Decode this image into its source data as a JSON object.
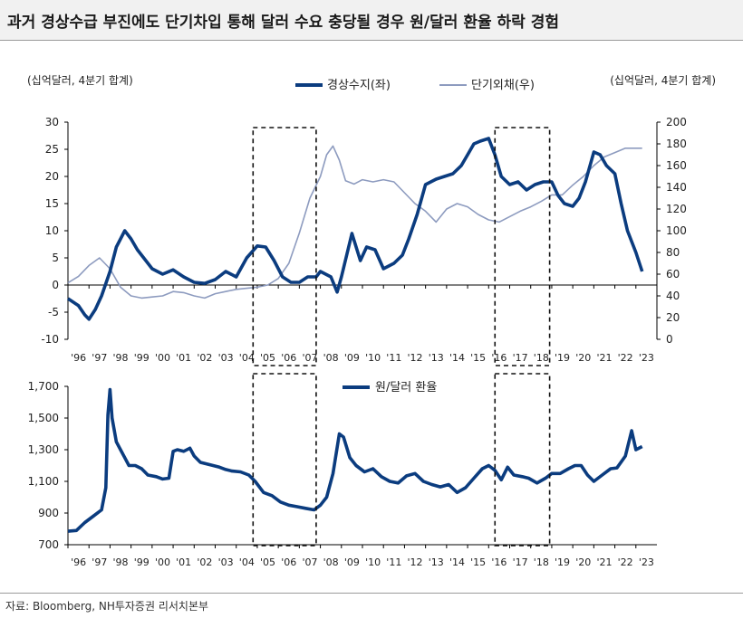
{
  "title": "과거 경상수급 부진에도 단기차입 통해 달러 수요 충당될 경우 원/달러 환율 하락 경험",
  "source": "자료: Bloomberg, NH투자증권 리서치본부",
  "colors": {
    "dark_series": "#0b3c7f",
    "light_series": "#8d9bbf",
    "axis": "#000000"
  },
  "chart_data": [
    {
      "type": "line",
      "title": "",
      "left_axis_unit": "(십억달러, 4분기 합계)",
      "right_axis_unit": "(십억달러, 4분기 합계)",
      "ylim_left": [
        -10,
        30
      ],
      "yticks_left": [
        -10,
        -5,
        0,
        5,
        10,
        15,
        20,
        25,
        30
      ],
      "ylim_right": [
        0,
        200
      ],
      "yticks_right": [
        0,
        20,
        40,
        60,
        80,
        100,
        120,
        140,
        160,
        180,
        200
      ],
      "xlim": [
        1996,
        2024
      ],
      "x_tick_labels": [
        "'96",
        "'97",
        "'98",
        "'99",
        "'00",
        "'01",
        "'02",
        "'03",
        "'04",
        "'05",
        "'06",
        "'07",
        "'08",
        "'09",
        "'10",
        "'11",
        "'12",
        "'13",
        "'14",
        "'15",
        "'16",
        "'17",
        "'18",
        "'19",
        "'20",
        "'21",
        "'22",
        "'23"
      ],
      "legend_position": "top",
      "series": [
        {
          "name": "경상수지(좌)",
          "axis": "left",
          "x": [
            1996.0,
            1996.5,
            1996.8,
            1997.0,
            1997.3,
            1997.6,
            1998.0,
            1998.3,
            1998.7,
            1999.0,
            1999.3,
            1999.6,
            2000.0,
            2000.5,
            2001.0,
            2001.5,
            2002.0,
            2002.5,
            2003.0,
            2003.5,
            2004.0,
            2004.5,
            2005.0,
            2005.4,
            2005.8,
            2006.2,
            2006.6,
            2007.0,
            2007.4,
            2007.8,
            2008.0,
            2008.5,
            2008.8,
            2009.0,
            2009.5,
            2009.9,
            2010.2,
            2010.6,
            2011.0,
            2011.5,
            2011.9,
            2012.2,
            2012.6,
            2013.0,
            2013.5,
            2013.9,
            2014.3,
            2014.7,
            2015.0,
            2015.3,
            2015.6,
            2016.0,
            2016.3,
            2016.6,
            2017.0,
            2017.4,
            2017.8,
            2018.2,
            2018.6,
            2019.0,
            2019.3,
            2019.6,
            2020.0,
            2020.3,
            2020.6,
            2021.0,
            2021.3,
            2021.6,
            2022.0,
            2022.3,
            2022.6,
            2023.0,
            2023.3
          ],
          "values": [
            -2.5,
            -3.8,
            -5.5,
            -6.3,
            -4.5,
            -2.0,
            2.5,
            7.0,
            10.0,
            8.5,
            6.5,
            5.0,
            3.0,
            2.0,
            2.8,
            1.5,
            0.5,
            0.3,
            1.0,
            2.5,
            1.5,
            5.0,
            7.2,
            7.0,
            4.5,
            1.5,
            0.5,
            0.5,
            1.5,
            1.5,
            2.5,
            1.5,
            -1.3,
            1.5,
            9.5,
            4.5,
            7.0,
            6.5,
            3.0,
            4.0,
            5.5,
            8.5,
            13.0,
            18.5,
            19.5,
            20.0,
            20.5,
            22.0,
            24.0,
            26.0,
            26.5,
            27.0,
            24.0,
            20.0,
            18.5,
            19.0,
            17.5,
            18.5,
            19.0,
            19.0,
            16.5,
            15.0,
            14.5,
            16.0,
            19.0,
            24.5,
            24.0,
            22.0,
            20.5,
            15.0,
            10.0,
            6.0,
            2.5
          ]
        },
        {
          "name": "단기외채(우)",
          "axis": "right",
          "x": [
            1996.0,
            1996.5,
            1997.0,
            1997.5,
            1998.0,
            1998.5,
            1999.0,
            1999.5,
            2000.0,
            2000.5,
            2001.0,
            2001.5,
            2002.0,
            2002.5,
            2003.0,
            2003.5,
            2004.0,
            2004.5,
            2005.0,
            2005.5,
            2006.0,
            2006.5,
            2007.0,
            2007.5,
            2008.0,
            2008.3,
            2008.6,
            2008.9,
            2009.2,
            2009.6,
            2010.0,
            2010.5,
            2011.0,
            2011.5,
            2012.0,
            2012.5,
            2013.0,
            2013.5,
            2014.0,
            2014.5,
            2015.0,
            2015.5,
            2016.0,
            2016.5,
            2017.0,
            2017.5,
            2018.0,
            2018.5,
            2019.0,
            2019.5,
            2020.0,
            2020.5,
            2021.0,
            2021.5,
            2022.0,
            2022.5,
            2023.0,
            2023.3
          ],
          "values": [
            52,
            58,
            68,
            75,
            65,
            48,
            40,
            38,
            39,
            40,
            44,
            43,
            40,
            38,
            42,
            44,
            46,
            47,
            48,
            50,
            56,
            70,
            98,
            130,
            150,
            170,
            178,
            165,
            146,
            143,
            147,
            145,
            147,
            145,
            135,
            125,
            118,
            108,
            120,
            125,
            122,
            115,
            110,
            108,
            113,
            118,
            122,
            127,
            133,
            133,
            142,
            150,
            160,
            168,
            172,
            176,
            176,
            176
          ]
        }
      ],
      "shaded_periods": [
        [
          2004.8,
          2007.8
        ],
        [
          2016.3,
          2018.9
        ]
      ]
    },
    {
      "type": "line",
      "title": "",
      "ylim": [
        700,
        1700
      ],
      "yticks": [
        700,
        900,
        1100,
        1300,
        1500,
        1700
      ],
      "ytick_labels": [
        "700",
        "900",
        "1,100",
        "1,300",
        "1,500",
        "1,700"
      ],
      "xlim": [
        1996,
        2024
      ],
      "x_tick_labels": [
        "'96",
        "'97",
        "'98",
        "'99",
        "'00",
        "'01",
        "'02",
        "'03",
        "'04",
        "'05",
        "'06",
        "'07",
        "'08",
        "'09",
        "'10",
        "'11",
        "'12",
        "'13",
        "'14",
        "'15",
        "'16",
        "'17",
        "'18",
        "'19",
        "'20",
        "'21",
        "'22",
        "'23"
      ],
      "legend_position": "top-center",
      "series": [
        {
          "name": "원/달러 환율",
          "x": [
            1996.0,
            1996.4,
            1996.8,
            1997.2,
            1997.6,
            1997.8,
            1997.9,
            1998.0,
            1998.1,
            1998.3,
            1998.5,
            1998.7,
            1998.9,
            1999.2,
            1999.5,
            1999.8,
            2000.2,
            2000.5,
            2000.8,
            2001.0,
            2001.2,
            2001.5,
            2001.8,
            2002.0,
            2002.3,
            2002.6,
            2002.9,
            2003.2,
            2003.5,
            2003.8,
            2004.2,
            2004.6,
            2004.9,
            2005.3,
            2005.7,
            2006.1,
            2006.5,
            2006.9,
            2007.3,
            2007.7,
            2008.0,
            2008.3,
            2008.6,
            2008.9,
            2009.1,
            2009.4,
            2009.7,
            2010.1,
            2010.5,
            2010.9,
            2011.3,
            2011.7,
            2012.1,
            2012.5,
            2012.9,
            2013.3,
            2013.7,
            2014.1,
            2014.5,
            2014.9,
            2015.3,
            2015.7,
            2016.0,
            2016.3,
            2016.6,
            2016.9,
            2017.2,
            2017.6,
            2017.9,
            2018.3,
            2018.7,
            2019.0,
            2019.4,
            2019.8,
            2020.1,
            2020.4,
            2020.7,
            2021.0,
            2021.4,
            2021.8,
            2022.1,
            2022.5,
            2022.8,
            2023.0,
            2023.3
          ],
          "values": [
            785,
            790,
            840,
            880,
            920,
            1060,
            1520,
            1680,
            1500,
            1350,
            1300,
            1250,
            1200,
            1200,
            1180,
            1140,
            1130,
            1115,
            1120,
            1290,
            1300,
            1290,
            1310,
            1260,
            1220,
            1210,
            1200,
            1190,
            1175,
            1165,
            1160,
            1140,
            1100,
            1030,
            1010,
            970,
            950,
            940,
            930,
            920,
            950,
            1000,
            1150,
            1400,
            1380,
            1250,
            1200,
            1160,
            1180,
            1130,
            1100,
            1090,
            1135,
            1150,
            1100,
            1080,
            1065,
            1080,
            1030,
            1060,
            1120,
            1180,
            1200,
            1170,
            1110,
            1190,
            1140,
            1130,
            1120,
            1090,
            1120,
            1150,
            1150,
            1180,
            1200,
            1200,
            1140,
            1100,
            1140,
            1180,
            1185,
            1260,
            1420,
            1300,
            1320
          ]
        }
      ],
      "shaded_periods": [
        [
          2004.8,
          2007.8
        ],
        [
          2016.3,
          2018.9
        ]
      ]
    }
  ]
}
